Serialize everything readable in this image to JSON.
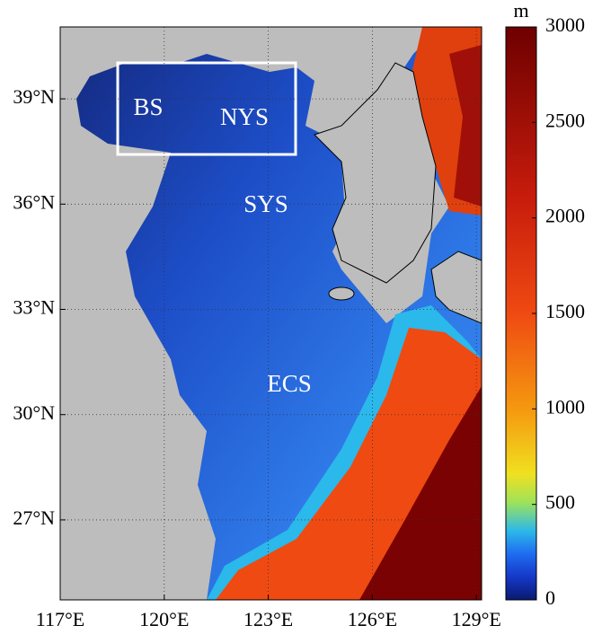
{
  "map": {
    "xlim": [
      117,
      129.15
    ],
    "ylim": [
      24.72,
      41.05
    ],
    "xticks": [
      {
        "value": 117,
        "label": "117°E"
      },
      {
        "value": 120,
        "label": "120°E"
      },
      {
        "value": 123,
        "label": "123°E"
      },
      {
        "value": 126,
        "label": "126°E"
      },
      {
        "value": 129,
        "label": "129°E"
      }
    ],
    "yticks": [
      {
        "value": 27,
        "label": "27°N"
      },
      {
        "value": 30,
        "label": "30°N"
      },
      {
        "value": 33,
        "label": "33°N"
      },
      {
        "value": 36,
        "label": "36°N"
      },
      {
        "value": 39,
        "label": "39°N"
      }
    ],
    "grid": true,
    "regions": [
      "BS",
      "NYS",
      "SYS",
      "ECS"
    ]
  },
  "colorbar": {
    "unit": "m",
    "lim": [
      0,
      3000
    ],
    "ticks": [
      0,
      500,
      1000,
      1500,
      2000,
      2500,
      3000
    ]
  }
}
